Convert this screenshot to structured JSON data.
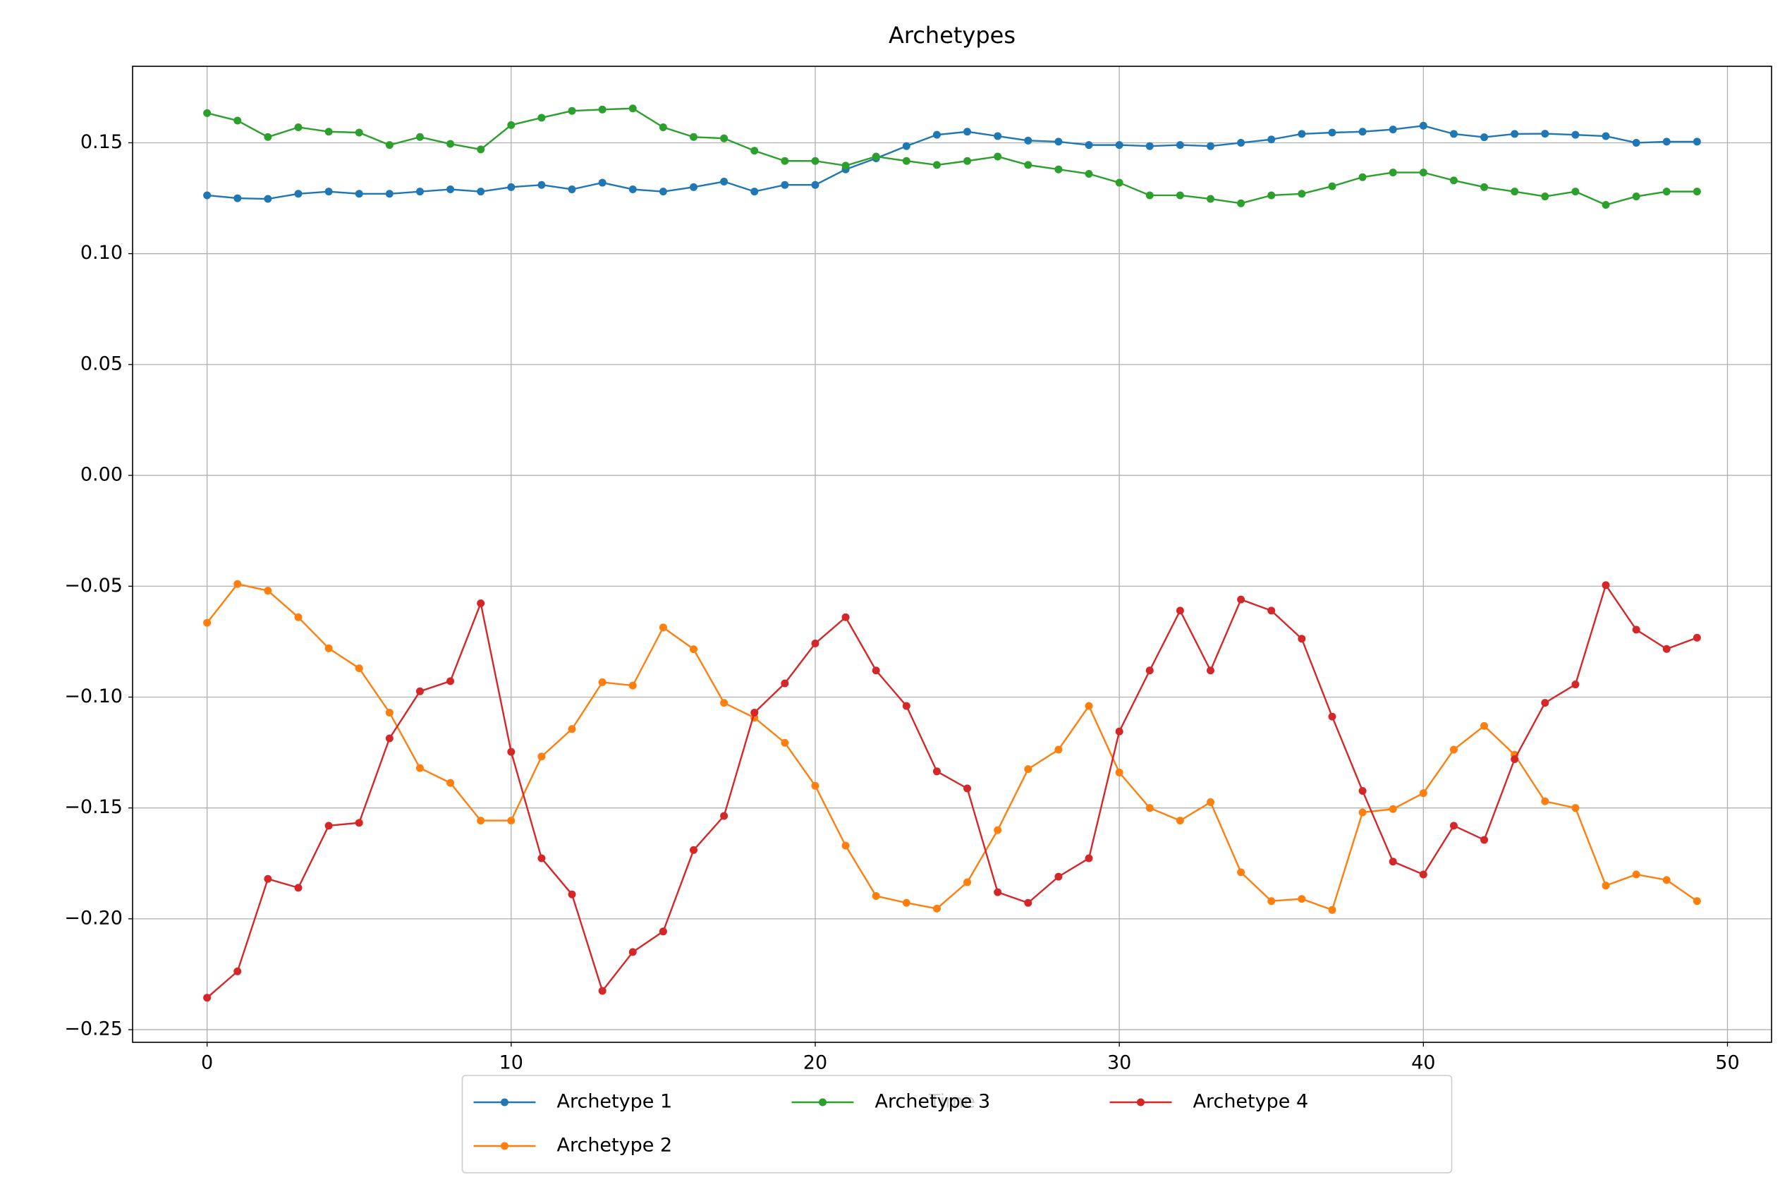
{
  "chart_data": {
    "type": "line",
    "title": "Archetypes",
    "xlabel": "Time",
    "x": [
      0,
      1,
      2,
      3,
      4,
      5,
      6,
      7,
      8,
      9,
      10,
      11,
      12,
      13,
      14,
      15,
      16,
      17,
      18,
      19,
      20,
      21,
      22,
      23,
      24,
      25,
      26,
      27,
      28,
      29,
      30,
      31,
      32,
      33,
      34,
      35,
      36,
      37,
      38,
      39,
      40,
      41,
      42,
      43,
      44,
      45,
      46,
      47,
      48,
      49
    ],
    "series": [
      {
        "name": "Archetype 1",
        "color": "#1f77b4",
        "values": [
          0.1263,
          0.125,
          0.1247,
          0.127,
          0.128,
          0.127,
          0.127,
          0.128,
          0.129,
          0.128,
          0.13,
          0.131,
          0.129,
          0.132,
          0.129,
          0.128,
          0.13,
          0.1325,
          0.128,
          0.131,
          0.131,
          0.138,
          0.143,
          0.1485,
          0.1536,
          0.155,
          0.153,
          0.151,
          0.1505,
          0.149,
          0.149,
          0.1485,
          0.149,
          0.1485,
          0.15,
          0.1515,
          0.154,
          0.1546,
          0.155,
          0.156,
          0.1577,
          0.154,
          0.1525,
          0.154,
          0.1541,
          0.1536,
          0.153,
          0.15,
          0.1505,
          0.1505
        ]
      },
      {
        "name": "Archetype 2",
        "color": "#ff7f0e",
        "values": [
          -0.0665,
          -0.049,
          -0.052,
          -0.064,
          -0.078,
          -0.087,
          -0.107,
          -0.132,
          -0.1387,
          -0.1557,
          -0.1557,
          -0.1268,
          -0.1144,
          -0.0933,
          -0.0948,
          -0.0686,
          -0.0784,
          -0.1026,
          -0.1093,
          -0.1206,
          -0.14,
          -0.167,
          -0.1897,
          -0.1928,
          -0.1954,
          -0.1835,
          -0.16,
          -0.1325,
          -0.1237,
          -0.104,
          -0.134,
          -0.15,
          -0.1557,
          -0.1474,
          -0.179,
          -0.192,
          -0.191,
          -0.196,
          -0.152,
          -0.1505,
          -0.1433,
          -0.1237,
          -0.113,
          -0.126,
          -0.147,
          -0.15,
          -0.185,
          -0.18,
          -0.1825,
          -0.192
        ]
      },
      {
        "name": "Archetype 3",
        "color": "#2ca02c",
        "values": [
          0.1634,
          0.16,
          0.1526,
          0.157,
          0.155,
          0.1546,
          0.149,
          0.1526,
          0.1495,
          0.147,
          0.158,
          0.1613,
          0.1644,
          0.165,
          0.1655,
          0.157,
          0.1526,
          0.152,
          0.1464,
          0.1418,
          0.1418,
          0.1397,
          0.1438,
          0.1418,
          0.14,
          0.1418,
          0.1438,
          0.14,
          0.138,
          0.136,
          0.132,
          0.1263,
          0.1263,
          0.1247,
          0.1227,
          0.1263,
          0.127,
          0.1304,
          0.1345,
          0.1366,
          0.1366,
          0.133,
          0.13,
          0.128,
          0.1258,
          0.128,
          0.122,
          0.1258,
          0.128,
          0.128
        ]
      },
      {
        "name": "Archetype 4",
        "color": "#d62728",
        "values": [
          -0.2356,
          -0.2237,
          -0.182,
          -0.186,
          -0.158,
          -0.1567,
          -0.1186,
          -0.0974,
          -0.0928,
          -0.0577,
          -0.1247,
          -0.1727,
          -0.189,
          -0.2325,
          -0.215,
          -0.2057,
          -0.169,
          -0.1536,
          -0.107,
          -0.0938,
          -0.0758,
          -0.064,
          -0.088,
          -0.104,
          -0.1335,
          -0.1412,
          -0.188,
          -0.1928,
          -0.181,
          -0.1727,
          -0.1155,
          -0.088,
          -0.061,
          -0.088,
          -0.056,
          -0.061,
          -0.0737,
          -0.1088,
          -0.1423,
          -0.1742,
          -0.18,
          -0.158,
          -0.1644,
          -0.128,
          -0.1026,
          -0.0943,
          -0.0495,
          -0.0696,
          -0.0783,
          -0.0732
        ]
      }
    ],
    "xlim": [
      -2.45,
      51.45
    ],
    "xticks": [
      0,
      10,
      20,
      30,
      40,
      50
    ],
    "ylim": [
      -0.2557,
      0.1845
    ],
    "yticks": [
      {
        "value": -0.25,
        "label": "−0.25"
      },
      {
        "value": -0.2,
        "label": "−0.20"
      },
      {
        "value": -0.15,
        "label": "−0.15"
      },
      {
        "value": -0.1,
        "label": "−0.10"
      },
      {
        "value": -0.05,
        "label": "−0.05"
      },
      {
        "value": 0,
        "label": "0.00"
      },
      {
        "value": 0.05,
        "label": "0.05"
      },
      {
        "value": 0.1,
        "label": "0.10"
      },
      0.15
    ],
    "grid": true,
    "markers": true,
    "legend": "lower center",
    "legend_ncol": 3
  }
}
